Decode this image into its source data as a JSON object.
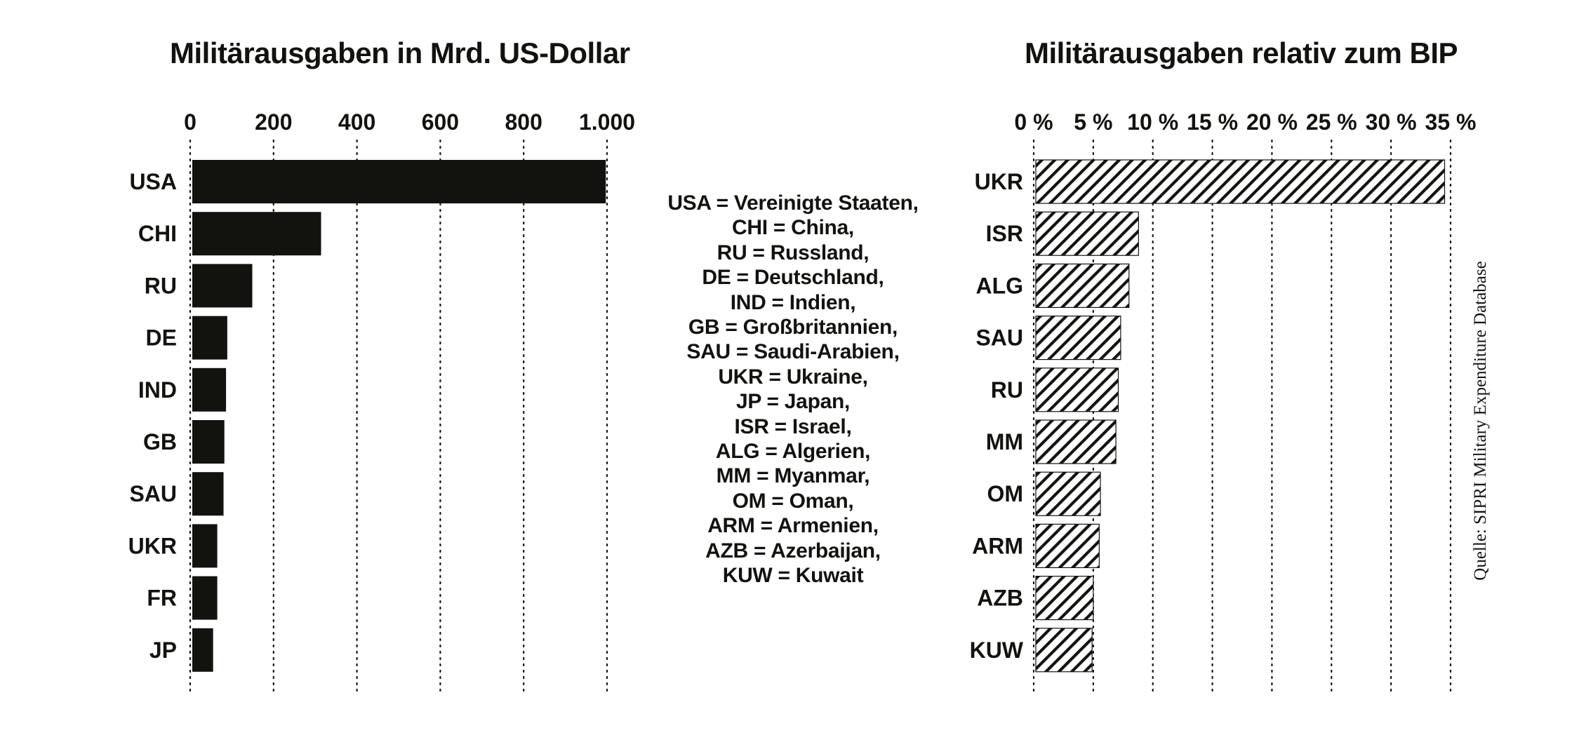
{
  "colors": {
    "ink": "#12120f",
    "background": "#ffffff",
    "hatch": "#12120f"
  },
  "legend": [
    "USA = Vereinigte Staaten,",
    "CHI = China,",
    "RU = Russland,",
    "DE = Deutschland,",
    "IND = Indien,",
    "GB = Großbritannien,",
    "SAU = Saudi-Arabien,",
    "UKR = Ukraine,",
    "JP = Japan,",
    "ISR = Israel,",
    "ALG = Algerien,",
    "MM = Myanmar,",
    "OM = Oman,",
    "ARM = Armenien,",
    "AZB = Azerbaijan,",
    "KUW = Kuwait"
  ],
  "source": "Quelle: SIPRI Military Expenditure Database",
  "chart_data": [
    {
      "type": "bar",
      "orientation": "horizontal",
      "title": "Militärausgaben in Mrd. US-Dollar",
      "categories": [
        "USA",
        "CHI",
        "RU",
        "DE",
        "IND",
        "GB",
        "SAU",
        "UKR",
        "FR",
        "JP"
      ],
      "values": [
        997,
        314,
        149,
        89,
        86,
        82,
        80,
        65,
        65,
        55
      ],
      "xlim": [
        0,
        1000
      ],
      "xticks": [
        0,
        200,
        400,
        600,
        800,
        1000
      ],
      "xtick_labels": [
        "0",
        "200",
        "400",
        "600",
        "800",
        "1.000"
      ],
      "axis_position": "top",
      "grid": "vertical dotted",
      "bar_style": "solid"
    },
    {
      "type": "bar",
      "orientation": "horizontal",
      "title": "Militärausgaben relativ zum BIP",
      "categories": [
        "UKR",
        "ISR",
        "ALG",
        "SAU",
        "RU",
        "MM",
        "OM",
        "ARM",
        "AZB",
        "KUW"
      ],
      "values": [
        34.5,
        8.8,
        8.0,
        7.3,
        7.1,
        6.9,
        5.6,
        5.5,
        5.0,
        4.9
      ],
      "unit": "%",
      "xlim": [
        0,
        35
      ],
      "xticks": [
        0,
        5,
        10,
        15,
        20,
        25,
        30,
        35
      ],
      "xtick_labels": [
        "0 %",
        "5 %",
        "10 %",
        "15 %",
        "20 %",
        "25 %",
        "30 %",
        "35 %"
      ],
      "axis_position": "top",
      "grid": "vertical dotted",
      "bar_style": "hatched"
    }
  ]
}
